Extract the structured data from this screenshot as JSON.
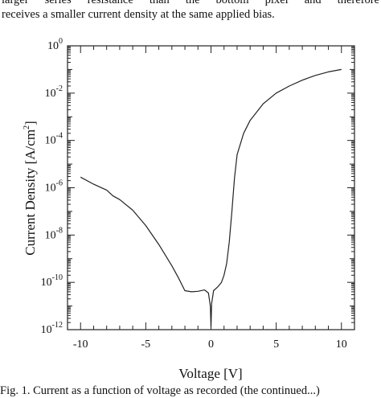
{
  "text": {
    "top_line": "larger series resistance than the bottom pixel and therefore",
    "second_line": "receives a smaller current density at the same applied bias.",
    "caption_fragment": "Fig. 1. Current as a function of voltage as recorded (the continued...)"
  },
  "chart_data": {
    "type": "line",
    "title": "",
    "xlabel": "Voltage [V]",
    "ylabel": "Current Density [A/cm²]",
    "ylabel_parts": {
      "main": "Current Density [A/cm",
      "sup": "2",
      "tail": "]"
    },
    "xlim": [
      -11,
      11
    ],
    "ylim_log10": [
      -12,
      0
    ],
    "y_scale": "log",
    "grid": false,
    "x_ticks": [
      -10,
      -5,
      0,
      5,
      10
    ],
    "x_tick_labels": [
      "-10",
      "-5",
      "0",
      "5",
      "10"
    ],
    "y_ticks_exponent": [
      0,
      -2,
      -4,
      -6,
      -8,
      -10,
      -12
    ],
    "y_tick_base": "10",
    "y_tick_exponents": [
      "0",
      "-2",
      "-4",
      "-6",
      "-8",
      "-10",
      "-12"
    ],
    "series": [
      {
        "x": [
          -10,
          -9,
          -8,
          -7.5,
          -7,
          -6,
          -5,
          -4,
          -3,
          -2.5,
          -2,
          -1.5,
          -1,
          -0.5,
          -0.2,
          -0.05,
          0,
          0.05,
          0.2,
          0.5,
          0.8,
          1.0,
          1.2,
          1.4,
          1.6,
          1.8,
          2.0,
          2.5,
          3,
          4,
          5,
          6,
          7,
          8,
          9,
          10
        ],
        "log10_y": [
          -5.55,
          -5.85,
          -6.1,
          -6.35,
          -6.5,
          -6.95,
          -7.6,
          -8.4,
          -9.3,
          -9.8,
          -10.35,
          -10.4,
          -10.38,
          -10.32,
          -10.45,
          -11.0,
          -11.9,
          -10.9,
          -10.35,
          -10.2,
          -10.0,
          -9.7,
          -9.2,
          -8.3,
          -7.0,
          -5.6,
          -4.6,
          -3.7,
          -3.15,
          -2.45,
          -2.0,
          -1.7,
          -1.45,
          -1.25,
          -1.1,
          -1.0
        ]
      }
    ]
  }
}
